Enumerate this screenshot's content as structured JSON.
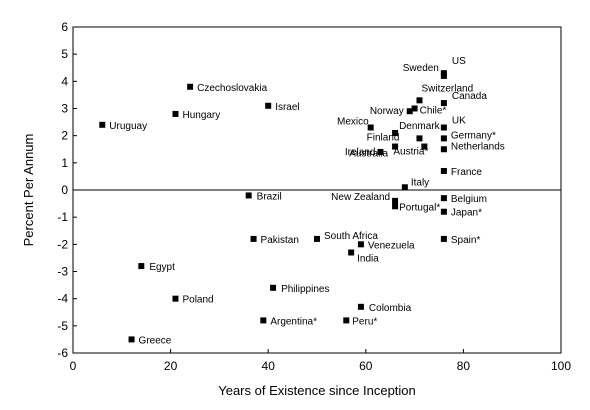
{
  "chart_data": {
    "type": "scatter",
    "xlabel": "Years of Existence since Inception",
    "ylabel": "Percent Per Annum",
    "xlim": [
      0,
      100
    ],
    "ylim": [
      -6,
      6
    ],
    "xticks": [
      0,
      20,
      40,
      60,
      80,
      100
    ],
    "yticks": [
      6,
      5,
      4,
      3,
      2,
      1,
      0,
      -1,
      -2,
      -3,
      -4,
      -5,
      -6
    ],
    "grid": false,
    "zero_line": true,
    "marker": "square",
    "marker_color": "#000000",
    "points": [
      {
        "label": "US",
        "x": 76,
        "y": 4.3
      },
      {
        "label": "Sweden",
        "x": 76,
        "y": 4.2
      },
      {
        "label": "Switzerland",
        "x": 71,
        "y": 3.3
      },
      {
        "label": "Canada",
        "x": 76,
        "y": 3.2
      },
      {
        "label": "Norway",
        "x": 69,
        "y": 2.9
      },
      {
        "label": "Chile*",
        "x": 70,
        "y": 3.0
      },
      {
        "label": "UK",
        "x": 76,
        "y": 2.3
      },
      {
        "label": "Mexico",
        "x": 61,
        "y": 2.3
      },
      {
        "label": "Denmark",
        "x": 66,
        "y": 2.1
      },
      {
        "label": "Finland",
        "x": 71,
        "y": 1.9
      },
      {
        "label": "Germany*",
        "x": 76,
        "y": 1.9
      },
      {
        "label": "Netherlands",
        "x": 76,
        "y": 1.5
      },
      {
        "label": "Austria*",
        "x": 72,
        "y": 1.6
      },
      {
        "label": "Ireland",
        "x": 63,
        "y": 1.4
      },
      {
        "label": "Australia",
        "x": 66,
        "y": 1.6
      },
      {
        "label": "France",
        "x": 76,
        "y": 0.7
      },
      {
        "label": "Italy",
        "x": 68,
        "y": 0.1
      },
      {
        "label": "New Zealand",
        "x": 66,
        "y": -0.4
      },
      {
        "label": "Belgium",
        "x": 76,
        "y": -0.3
      },
      {
        "label": "Portugal*",
        "x": 66,
        "y": -0.6
      },
      {
        "label": "Japan*",
        "x": 76,
        "y": -0.8
      },
      {
        "label": "Spain*",
        "x": 76,
        "y": -1.8
      },
      {
        "label": "Czechoslovakia",
        "x": 24,
        "y": 3.8
      },
      {
        "label": "Hungary",
        "x": 21,
        "y": 2.8
      },
      {
        "label": "Israel",
        "x": 40,
        "y": 3.1
      },
      {
        "label": "Uruguay",
        "x": 6,
        "y": 2.4
      },
      {
        "label": "Brazil",
        "x": 36,
        "y": -0.2
      },
      {
        "label": "Pakistan",
        "x": 37,
        "y": -1.8
      },
      {
        "label": "South Africa",
        "x": 50,
        "y": -1.8
      },
      {
        "label": "Venezuela",
        "x": 59,
        "y": -2.0
      },
      {
        "label": "India",
        "x": 57,
        "y": -2.3
      },
      {
        "label": "Egypt",
        "x": 14,
        "y": -2.8
      },
      {
        "label": "Philippines",
        "x": 41,
        "y": -3.6
      },
      {
        "label": "Poland",
        "x": 21,
        "y": -4.0
      },
      {
        "label": "Colombia",
        "x": 59,
        "y": -4.3
      },
      {
        "label": "Argentina*",
        "x": 39,
        "y": -4.8
      },
      {
        "label": "Peru*",
        "x": 56,
        "y": -4.8
      },
      {
        "label": "Greece",
        "x": 12,
        "y": -5.5
      }
    ]
  }
}
